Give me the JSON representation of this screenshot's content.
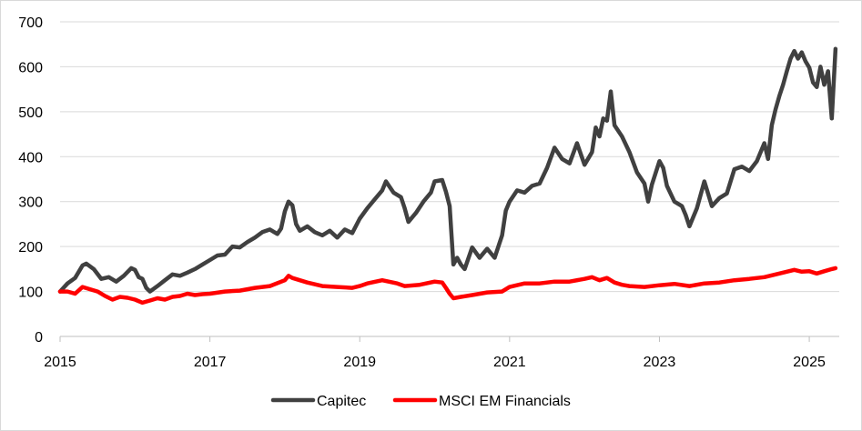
{
  "chart_data": {
    "type": "line",
    "title": "",
    "xlabel": "",
    "ylabel": "",
    "xlim": [
      2015,
      2025.4
    ],
    "ylim": [
      0,
      700
    ],
    "y_ticks": [
      0,
      100,
      200,
      300,
      400,
      500,
      600,
      700
    ],
    "x_ticks": [
      2015,
      2017,
      2019,
      2021,
      2023,
      2025
    ],
    "grid": "horizontal",
    "legend_position": "bottom",
    "series": [
      {
        "name": "Capitec",
        "color": "#404040",
        "points": [
          [
            2015.0,
            100
          ],
          [
            2015.1,
            118
          ],
          [
            2015.2,
            130
          ],
          [
            2015.3,
            158
          ],
          [
            2015.35,
            162
          ],
          [
            2015.45,
            150
          ],
          [
            2015.55,
            128
          ],
          [
            2015.65,
            132
          ],
          [
            2015.75,
            122
          ],
          [
            2015.85,
            135
          ],
          [
            2015.95,
            152
          ],
          [
            2016.0,
            148
          ],
          [
            2016.05,
            132
          ],
          [
            2016.1,
            128
          ],
          [
            2016.15,
            108
          ],
          [
            2016.2,
            100
          ],
          [
            2016.3,
            112
          ],
          [
            2016.4,
            125
          ],
          [
            2016.5,
            138
          ],
          [
            2016.6,
            135
          ],
          [
            2016.7,
            142
          ],
          [
            2016.8,
            150
          ],
          [
            2016.9,
            160
          ],
          [
            2017.0,
            170
          ],
          [
            2017.1,
            180
          ],
          [
            2017.2,
            182
          ],
          [
            2017.3,
            200
          ],
          [
            2017.4,
            198
          ],
          [
            2017.5,
            210
          ],
          [
            2017.6,
            220
          ],
          [
            2017.7,
            232
          ],
          [
            2017.8,
            238
          ],
          [
            2017.9,
            228
          ],
          [
            2017.95,
            240
          ],
          [
            2018.0,
            278
          ],
          [
            2018.05,
            300
          ],
          [
            2018.1,
            292
          ],
          [
            2018.15,
            250
          ],
          [
            2018.2,
            235
          ],
          [
            2018.3,
            245
          ],
          [
            2018.4,
            232
          ],
          [
            2018.5,
            225
          ],
          [
            2018.6,
            235
          ],
          [
            2018.7,
            220
          ],
          [
            2018.8,
            238
          ],
          [
            2018.9,
            230
          ],
          [
            2019.0,
            262
          ],
          [
            2019.1,
            285
          ],
          [
            2019.2,
            305
          ],
          [
            2019.3,
            325
          ],
          [
            2019.35,
            345
          ],
          [
            2019.45,
            320
          ],
          [
            2019.55,
            310
          ],
          [
            2019.6,
            285
          ],
          [
            2019.65,
            255
          ],
          [
            2019.75,
            275
          ],
          [
            2019.85,
            300
          ],
          [
            2019.95,
            320
          ],
          [
            2020.0,
            345
          ],
          [
            2020.1,
            348
          ],
          [
            2020.15,
            322
          ],
          [
            2020.2,
            290
          ],
          [
            2020.25,
            160
          ],
          [
            2020.3,
            175
          ],
          [
            2020.35,
            160
          ],
          [
            2020.4,
            150
          ],
          [
            2020.5,
            198
          ],
          [
            2020.6,
            175
          ],
          [
            2020.7,
            195
          ],
          [
            2020.8,
            175
          ],
          [
            2020.9,
            225
          ],
          [
            2020.95,
            280
          ],
          [
            2021.0,
            300
          ],
          [
            2021.1,
            325
          ],
          [
            2021.2,
            320
          ],
          [
            2021.3,
            335
          ],
          [
            2021.4,
            340
          ],
          [
            2021.5,
            375
          ],
          [
            2021.6,
            420
          ],
          [
            2021.7,
            395
          ],
          [
            2021.8,
            385
          ],
          [
            2021.9,
            430
          ],
          [
            2022.0,
            382
          ],
          [
            2022.1,
            410
          ],
          [
            2022.15,
            465
          ],
          [
            2022.2,
            445
          ],
          [
            2022.25,
            485
          ],
          [
            2022.3,
            480
          ],
          [
            2022.35,
            545
          ],
          [
            2022.4,
            470
          ],
          [
            2022.5,
            445
          ],
          [
            2022.6,
            410
          ],
          [
            2022.7,
            365
          ],
          [
            2022.8,
            340
          ],
          [
            2022.85,
            300
          ],
          [
            2022.9,
            338
          ],
          [
            2023.0,
            390
          ],
          [
            2023.05,
            375
          ],
          [
            2023.1,
            335
          ],
          [
            2023.2,
            300
          ],
          [
            2023.3,
            290
          ],
          [
            2023.35,
            270
          ],
          [
            2023.4,
            245
          ],
          [
            2023.5,
            285
          ],
          [
            2023.6,
            345
          ],
          [
            2023.7,
            290
          ],
          [
            2023.8,
            308
          ],
          [
            2023.9,
            318
          ],
          [
            2024.0,
            372
          ],
          [
            2024.1,
            378
          ],
          [
            2024.2,
            368
          ],
          [
            2024.3,
            390
          ],
          [
            2024.4,
            430
          ],
          [
            2024.45,
            395
          ],
          [
            2024.5,
            470
          ],
          [
            2024.55,
            505
          ],
          [
            2024.6,
            535
          ],
          [
            2024.65,
            560
          ],
          [
            2024.7,
            590
          ],
          [
            2024.75,
            618
          ],
          [
            2024.8,
            635
          ],
          [
            2024.85,
            618
          ],
          [
            2024.9,
            632
          ],
          [
            2024.95,
            612
          ],
          [
            2025.0,
            598
          ],
          [
            2025.05,
            565
          ],
          [
            2025.1,
            555
          ],
          [
            2025.15,
            600
          ],
          [
            2025.2,
            560
          ],
          [
            2025.25,
            590
          ],
          [
            2025.3,
            485
          ],
          [
            2025.35,
            640
          ]
        ]
      },
      {
        "name": "MSCI EM Financials",
        "color": "#ff0000",
        "points": [
          [
            2015.0,
            100
          ],
          [
            2015.1,
            100
          ],
          [
            2015.2,
            95
          ],
          [
            2015.3,
            110
          ],
          [
            2015.4,
            105
          ],
          [
            2015.5,
            100
          ],
          [
            2015.6,
            90
          ],
          [
            2015.7,
            82
          ],
          [
            2015.8,
            88
          ],
          [
            2015.9,
            86
          ],
          [
            2016.0,
            82
          ],
          [
            2016.1,
            75
          ],
          [
            2016.2,
            80
          ],
          [
            2016.3,
            85
          ],
          [
            2016.4,
            82
          ],
          [
            2016.5,
            88
          ],
          [
            2016.6,
            90
          ],
          [
            2016.7,
            95
          ],
          [
            2016.8,
            92
          ],
          [
            2016.9,
            94
          ],
          [
            2017.0,
            95
          ],
          [
            2017.2,
            100
          ],
          [
            2017.4,
            102
          ],
          [
            2017.6,
            108
          ],
          [
            2017.8,
            112
          ],
          [
            2018.0,
            125
          ],
          [
            2018.05,
            135
          ],
          [
            2018.1,
            130
          ],
          [
            2018.3,
            120
          ],
          [
            2018.5,
            112
          ],
          [
            2018.7,
            110
          ],
          [
            2018.9,
            108
          ],
          [
            2019.0,
            112
          ],
          [
            2019.1,
            118
          ],
          [
            2019.3,
            125
          ],
          [
            2019.5,
            118
          ],
          [
            2019.6,
            112
          ],
          [
            2019.8,
            115
          ],
          [
            2020.0,
            122
          ],
          [
            2020.1,
            120
          ],
          [
            2020.15,
            108
          ],
          [
            2020.2,
            95
          ],
          [
            2020.25,
            85
          ],
          [
            2020.35,
            88
          ],
          [
            2020.5,
            92
          ],
          [
            2020.7,
            98
          ],
          [
            2020.9,
            100
          ],
          [
            2021.0,
            110
          ],
          [
            2021.2,
            118
          ],
          [
            2021.4,
            118
          ],
          [
            2021.6,
            122
          ],
          [
            2021.8,
            122
          ],
          [
            2022.0,
            128
          ],
          [
            2022.1,
            132
          ],
          [
            2022.2,
            125
          ],
          [
            2022.3,
            130
          ],
          [
            2022.4,
            120
          ],
          [
            2022.5,
            115
          ],
          [
            2022.6,
            112
          ],
          [
            2022.8,
            110
          ],
          [
            2023.0,
            114
          ],
          [
            2023.2,
            117
          ],
          [
            2023.4,
            112
          ],
          [
            2023.6,
            118
          ],
          [
            2023.8,
            120
          ],
          [
            2024.0,
            125
          ],
          [
            2024.2,
            128
          ],
          [
            2024.4,
            132
          ],
          [
            2024.6,
            140
          ],
          [
            2024.8,
            148
          ],
          [
            2024.9,
            144
          ],
          [
            2025.0,
            145
          ],
          [
            2025.1,
            140
          ],
          [
            2025.2,
            145
          ],
          [
            2025.3,
            150
          ],
          [
            2025.35,
            152
          ]
        ]
      }
    ]
  }
}
